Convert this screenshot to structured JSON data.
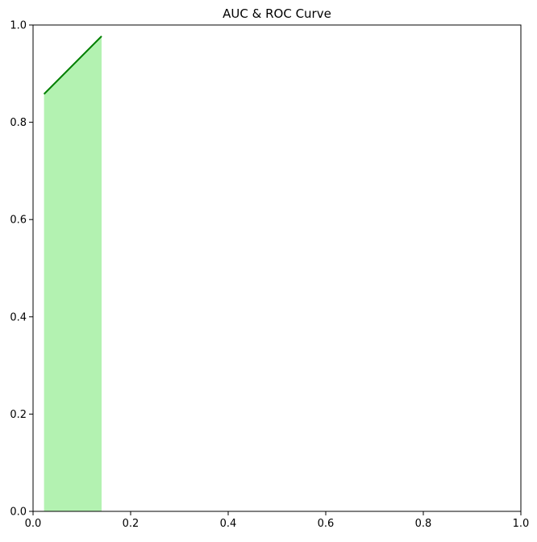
{
  "chart_data": {
    "type": "area",
    "title": "AUC & ROC Curve",
    "xlabel": "",
    "ylabel": "",
    "xlim": [
      0,
      1
    ],
    "ylim": [
      0,
      1
    ],
    "xticks": [
      "0.0",
      "0.2",
      "0.4",
      "0.6",
      "0.8",
      "1.0"
    ],
    "yticks": [
      "0.0",
      "0.2",
      "0.4",
      "0.6",
      "0.8",
      "1.0"
    ],
    "grid": false,
    "series": [
      {
        "x": [
          0.0225,
          0.1405
        ],
        "y": [
          0.858,
          0.977
        ],
        "line_color": "#008000",
        "fill_color": "#b3f2b1"
      }
    ]
  }
}
